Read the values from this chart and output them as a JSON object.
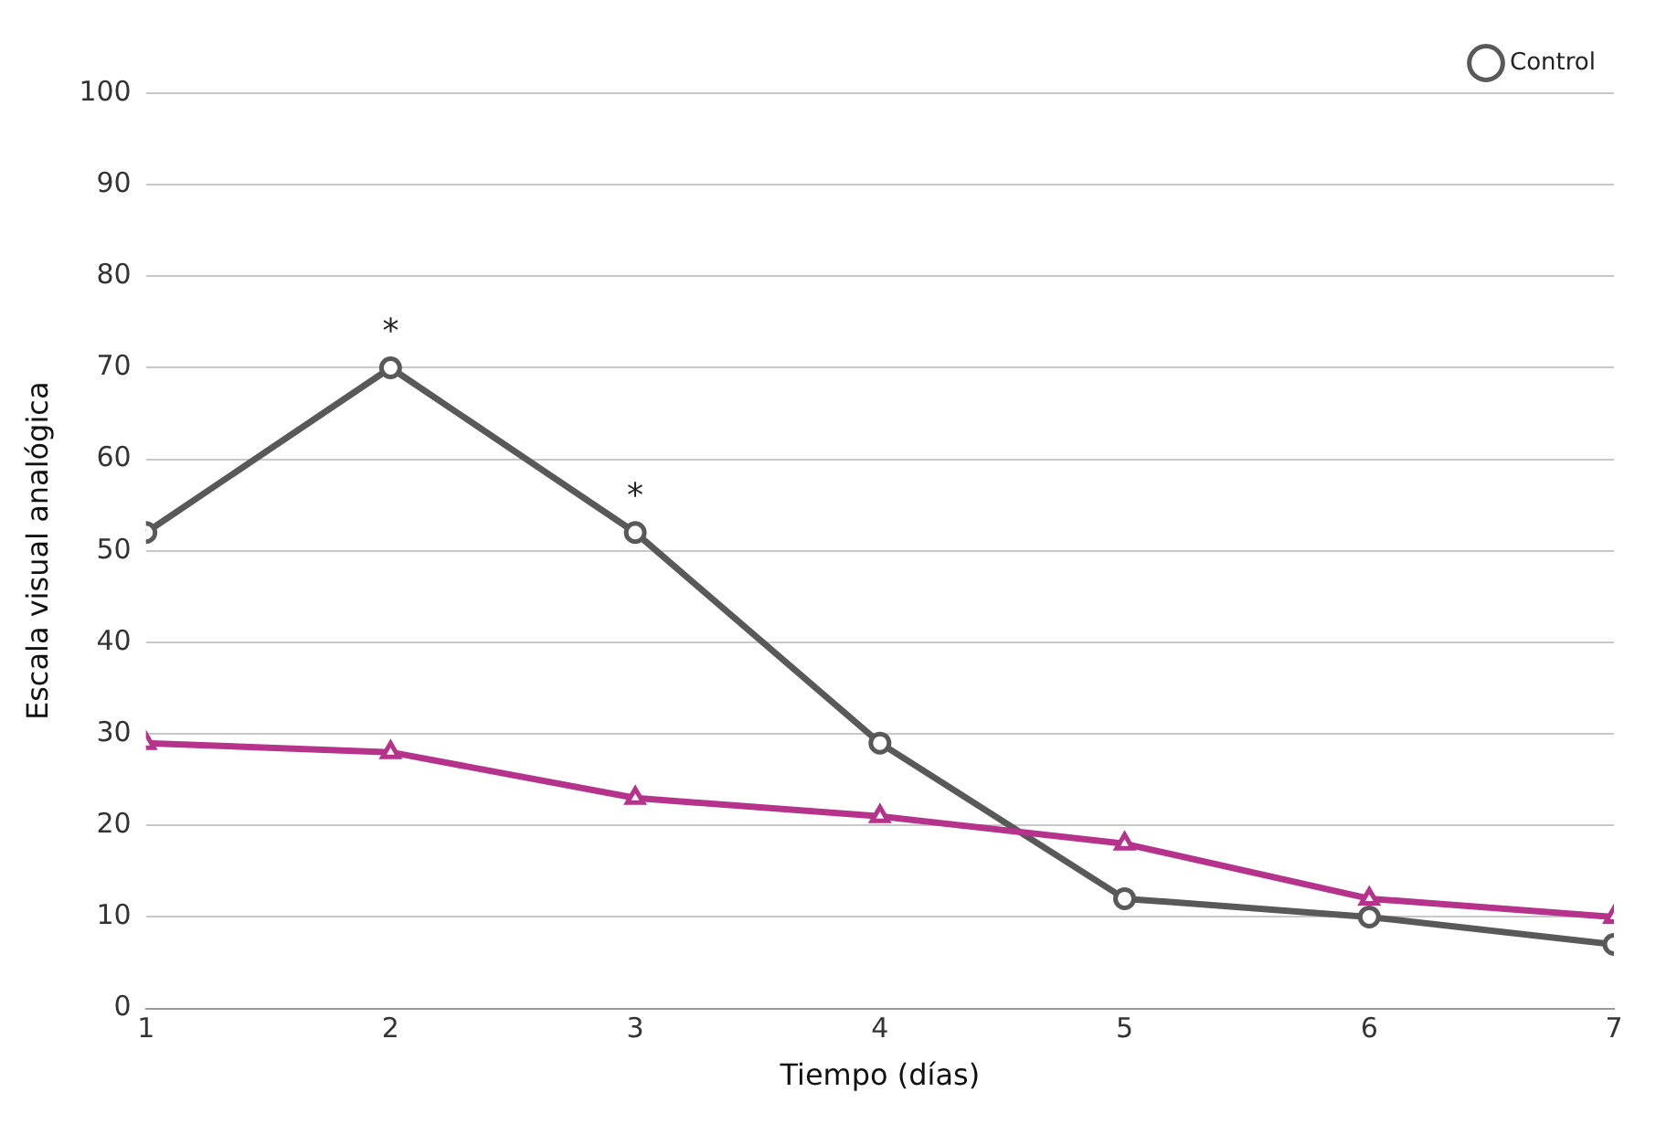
{
  "chart_data": {
    "type": "line",
    "xlabel": "Tiempo (días)",
    "ylabel": "Escala visual analógica",
    "x": [
      1,
      2,
      3,
      4,
      5,
      6,
      7
    ],
    "series": [
      {
        "color": "#b5338a",
        "marker": "triangle",
        "values": [
          29,
          28,
          23,
          21,
          18,
          12,
          10
        ]
      },
      {
        "name": "Control",
        "color": "#595959",
        "marker": "circle",
        "values": [
          52,
          70,
          52,
          29,
          12,
          10,
          7
        ]
      }
    ],
    "xlim": [
      1,
      7
    ],
    "xticks": [
      1,
      2,
      3,
      4,
      5,
      6,
      7
    ],
    "ylim": [
      0,
      100
    ],
    "yticks": [
      0,
      10,
      20,
      30,
      40,
      50,
      60,
      70,
      80,
      90,
      100
    ],
    "grid": "y",
    "legend": "top right",
    "line_style": "solid",
    "annotations": [
      {
        "text": "*",
        "x": 2,
        "y": 70
      },
      {
        "text": "*",
        "x": 3,
        "y": 52
      }
    ]
  }
}
